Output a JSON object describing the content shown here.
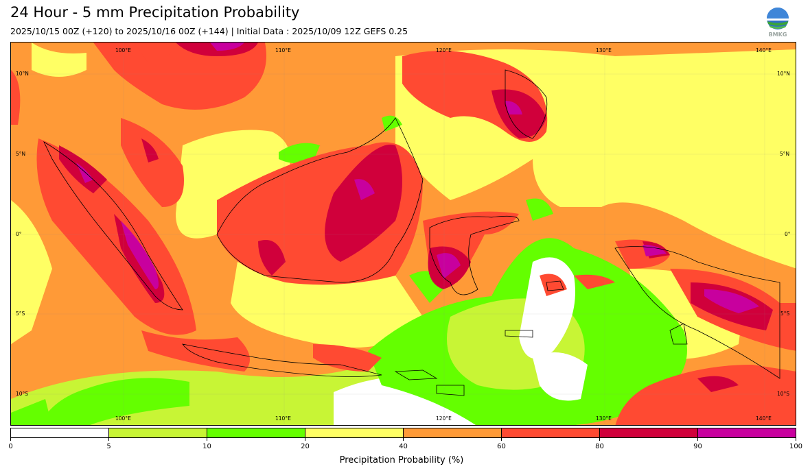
{
  "header": {
    "title": "24 Hour - 5 mm Precipitation Probability",
    "subtitle": "2025/10/15 00Z (+120) to 2025/10/16 00Z (+144) | Initial Data : 2025/10/09 12Z GEFS 0.25"
  },
  "logo": {
    "text": "BMKG",
    "icon": "bmkg-logo-icon"
  },
  "map": {
    "longitude_labels": [
      "100°E",
      "110°E",
      "120°E",
      "130°E",
      "140°E"
    ],
    "latitude_labels": [
      "10°N",
      "5°N",
      "0°",
      "5°S",
      "10°S"
    ],
    "extent": {
      "lon": [
        92.5,
        141.5
      ],
      "lat": [
        -11.7,
        12.3
      ]
    }
  },
  "colorbar": {
    "ticks": [
      "0",
      "5",
      "10",
      "20",
      "40",
      "60",
      "80",
      "90",
      "100"
    ],
    "colors": [
      "#ffffff",
      "#c8f535",
      "#64ff00",
      "#ffff64",
      "#ff9a37",
      "#ff4a32",
      "#d0003b",
      "#c8009e"
    ],
    "label": "Precipitation Probability (%)"
  }
}
